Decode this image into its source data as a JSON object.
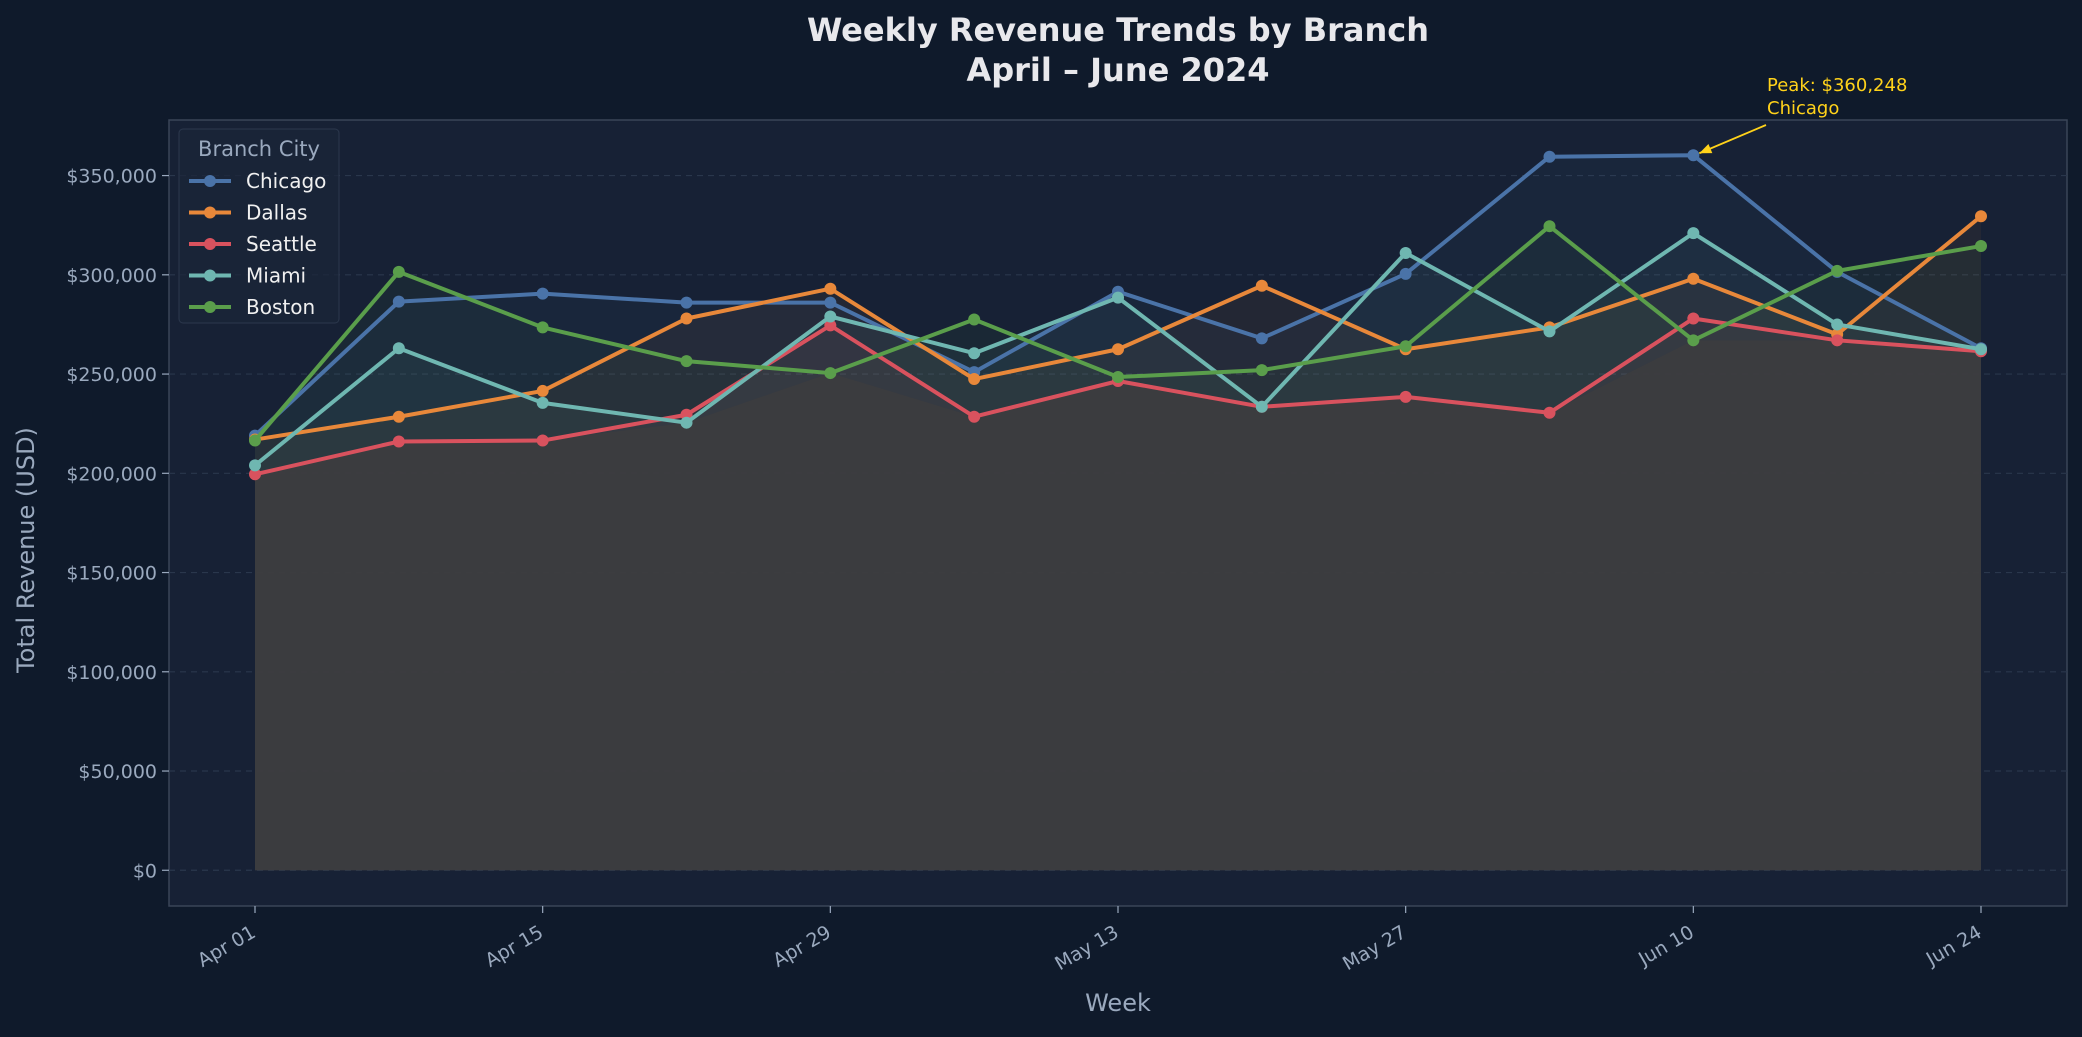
{
  "chart_data": {
    "type": "line",
    "title_line1": "Weekly Revenue Trends by Branch",
    "title_line2": "April – June 2024",
    "xlabel": "Week",
    "ylabel": "Total Revenue (USD)",
    "x": [
      "2024-04-01",
      "2024-04-08",
      "2024-04-15",
      "2024-04-22",
      "2024-04-29",
      "2024-05-06",
      "2024-05-13",
      "2024-05-20",
      "2024-05-27",
      "2024-06-03",
      "2024-06-10",
      "2024-06-17",
      "2024-06-24"
    ],
    "x_tick_labels": [
      {
        "date": "2024-04-01",
        "label": "Apr 01"
      },
      {
        "date": "2024-04-15",
        "label": "Apr 15"
      },
      {
        "date": "2024-04-29",
        "label": "Apr 29"
      },
      {
        "date": "2024-05-13",
        "label": "May 13"
      },
      {
        "date": "2024-05-27",
        "label": "May 27"
      },
      {
        "date": "2024-06-10",
        "label": "Jun 10"
      },
      {
        "date": "2024-06-24",
        "label": "Jun 24"
      }
    ],
    "ylim": [
      -18000,
      378000
    ],
    "y_ticks": [
      {
        "value": 0,
        "label": "$0"
      },
      {
        "value": 50000,
        "label": "$50,000"
      },
      {
        "value": 100000,
        "label": "$100,000"
      },
      {
        "value": 150000,
        "label": "$150,000"
      },
      {
        "value": 200000,
        "label": "$200,000"
      },
      {
        "value": 250000,
        "label": "$250,000"
      },
      {
        "value": 300000,
        "label": "$300,000"
      },
      {
        "value": 350000,
        "label": "$350,000"
      }
    ],
    "grid": true,
    "legend": {
      "title": "Branch City",
      "placement": "top-left"
    },
    "series": [
      {
        "name": "Chicago",
        "color": "#4a73a8",
        "values": [
          219000,
          286500,
          290500,
          286000,
          286000,
          251000,
          291500,
          268000,
          300500,
          359500,
          360248,
          301500,
          263000
        ]
      },
      {
        "name": "Dallas",
        "color": "#e8883a",
        "values": [
          217000,
          228500,
          241500,
          278000,
          293000,
          247500,
          262500,
          294500,
          262500,
          273500,
          298000,
          270000,
          329500
        ]
      },
      {
        "name": "Seattle",
        "color": "#d9525e",
        "values": [
          199500,
          216000,
          216500,
          229500,
          274500,
          228500,
          246500,
          233500,
          238500,
          230500,
          278000,
          267000,
          261500
        ]
      },
      {
        "name": "Miami",
        "color": "#6fb7b1",
        "values": [
          204000,
          263000,
          235500,
          225500,
          279000,
          260500,
          288500,
          233500,
          311000,
          271500,
          321000,
          275000,
          262500
        ]
      },
      {
        "name": "Boston",
        "color": "#5a9e4b",
        "values": [
          216500,
          301500,
          273500,
          256500,
          250500,
          277500,
          248500,
          252000,
          264000,
          324500,
          267000,
          302000,
          314500
        ]
      }
    ],
    "annotation": {
      "text_line1": "Peak: $360,248",
      "text_line2": "Chicago",
      "point_date": "2024-06-10",
      "point_value": 360248,
      "color": "#ffd21a"
    },
    "colors": {
      "background": "#0f1a2b",
      "plot_background": "#172135",
      "title": "#e8e8ec",
      "axis_text": "#9aa9be",
      "grid": "#2a374c",
      "fill": "#3c3c3f"
    }
  }
}
